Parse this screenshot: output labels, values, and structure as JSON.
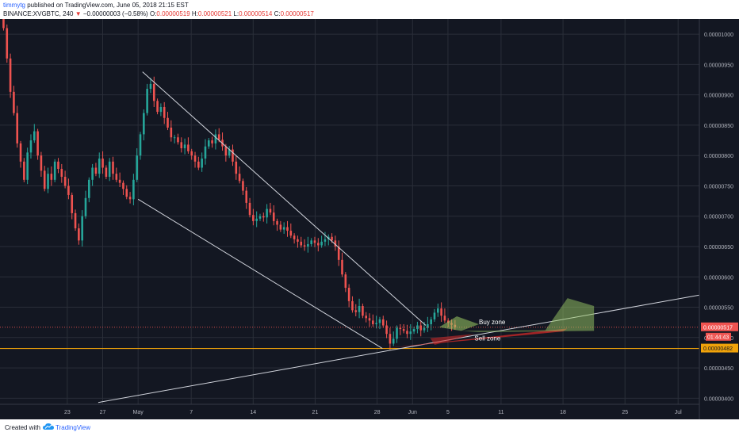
{
  "header": {
    "user": "timmytg",
    "published": " published on TradingView.com, June 05, 2018 21:15 EST",
    "symbol": "BINANCE:XVGBTC, 240",
    "change": "−0.00000003 (−0.58%)",
    "o_label": "O:",
    "o_value": "0.00000519",
    "h_label": "H:",
    "h_value": "0.00000521",
    "l_label": "L:",
    "l_value": "0.00000514",
    "c_label": "C:",
    "c_value": "0.00000517",
    "last_price": "0.00000517"
  },
  "footer": {
    "created_with": "Created with",
    "brand": "TradingView"
  },
  "colors": {
    "background": "#131722",
    "grid": "#2a2e39",
    "up": "#26a69a",
    "down": "#ef5350",
    "support": "#f0a30a",
    "trendline": "#d1d4dc",
    "buy_zone": "#9ccc65",
    "sell_zone": "#c62828"
  },
  "chart_data": {
    "type": "candlestick",
    "y_ticks": [
      "0.00001000",
      "0.00000950",
      "0.00000900",
      "0.00000850",
      "0.00000800",
      "0.00000750",
      "0.00000700",
      "0.00000650",
      "0.00000600",
      "0.00000550",
      "0.00000500",
      "0.00000450",
      "0.00000400"
    ],
    "y_tick_values": [
      1000,
      950,
      900,
      850,
      800,
      750,
      700,
      650,
      600,
      550,
      500,
      450,
      400
    ],
    "y_unit_scale": 1e-08,
    "ylim": [
      390,
      1025
    ],
    "x_ticks": [
      "23",
      "27",
      "May",
      "7",
      "14",
      "21",
      "28",
      "Jun",
      "5",
      "11",
      "18",
      "25",
      "Jul"
    ],
    "x_tick_days": [
      -8,
      -4,
      0,
      6,
      13,
      20,
      27,
      31,
      35,
      41,
      48,
      55,
      61
    ],
    "xlim": [
      -15.6,
      63.4
    ],
    "x_unit": "days since May 1, 2018",
    "last_price_label": "0.00000517",
    "countdown_label": "01:44:43",
    "support_label": "0.00000482",
    "last_price": 517,
    "support_level": 482,
    "grid": true,
    "candles_close": [
      1010,
      960,
      905,
      870,
      820,
      790,
      760,
      805,
      825,
      840,
      800,
      775,
      745,
      770,
      760,
      790,
      778,
      765,
      750,
      735,
      705,
      680,
      660,
      700,
      730,
      760,
      780,
      770,
      795,
      780,
      765,
      790,
      770,
      760,
      755,
      745,
      732,
      728,
      760,
      800,
      835,
      870,
      910,
      918,
      890,
      872,
      880,
      862,
      846,
      830,
      830,
      822,
      812,
      818,
      807,
      800,
      790,
      780,
      795,
      815,
      825,
      820,
      835,
      826,
      815,
      800,
      810,
      790,
      770,
      758,
      742,
      722,
      702,
      692,
      696,
      700,
      698,
      712,
      706,
      692,
      686,
      678,
      682,
      676,
      668,
      662,
      658,
      652,
      650,
      654,
      660,
      656,
      652,
      658,
      662,
      666,
      660,
      650,
      628,
      604,
      582,
      560,
      545,
      542,
      552,
      536,
      532,
      528,
      522,
      524,
      530,
      520,
      506,
      490,
      498,
      516,
      514,
      511,
      506,
      510,
      514,
      520,
      512,
      516,
      522,
      530,
      541,
      548,
      536,
      528,
      524,
      521,
      517
    ]
  },
  "annotations": {
    "buy_zone": "Buy zone",
    "sell_zone": "Sell zone"
  }
}
